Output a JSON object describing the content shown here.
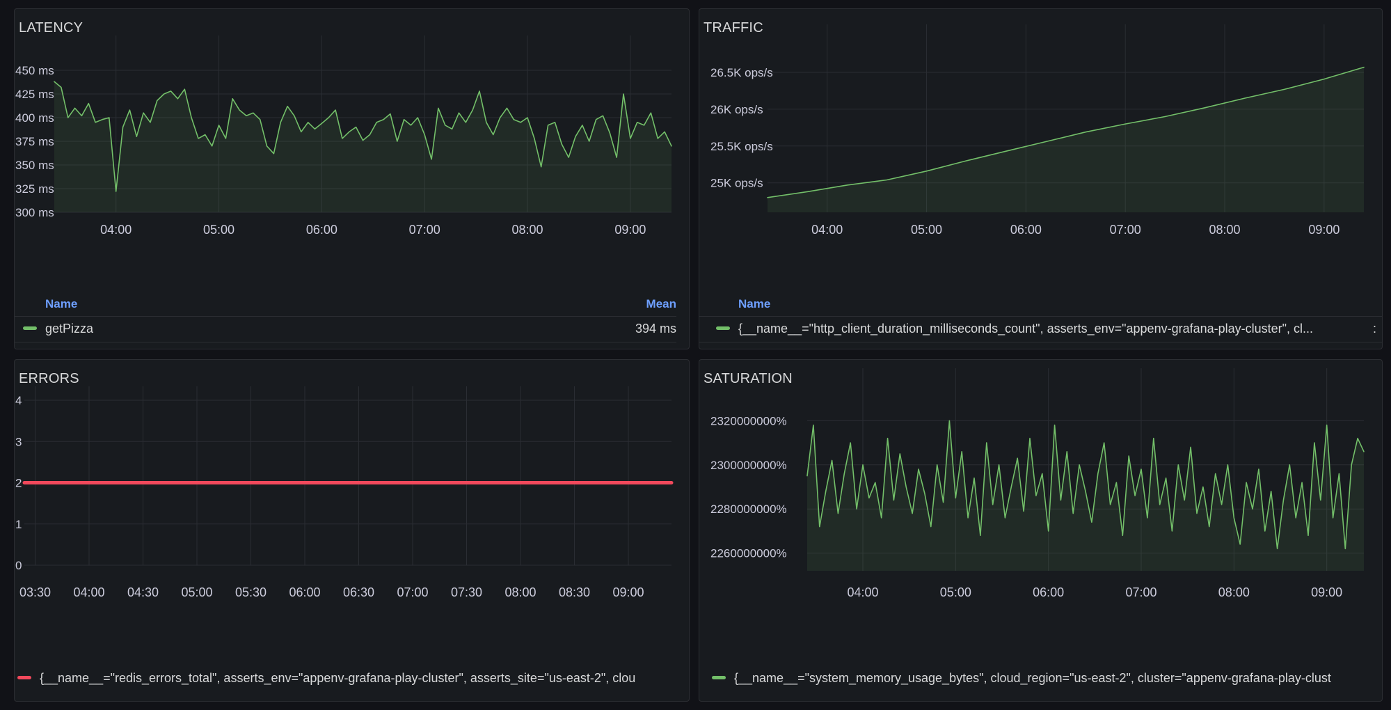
{
  "colors": {
    "green": "#73bf69",
    "red": "#f2495c"
  },
  "panels": {
    "latency": {
      "title": "LATENCY",
      "legend_name_header": "Name",
      "legend_mean_header": "Mean",
      "legend_series": "getPizza",
      "legend_mean": "394 ms"
    },
    "traffic": {
      "title": "TRAFFIC",
      "legend_name_header": "Name",
      "legend_series": "{__name__=\"http_client_duration_milliseconds_count\", asserts_env=\"appenv-grafana-play-cluster\", cl...",
      "legend_trailing": ":"
    },
    "errors": {
      "title": "ERRORS",
      "legend_series": "{__name__=\"redis_errors_total\", asserts_env=\"appenv-grafana-play-cluster\", asserts_site=\"us-east-2\", clou"
    },
    "saturation": {
      "title": "SATURATION",
      "legend_series": "{__name__=\"system_memory_usage_bytes\", cloud_region=\"us-east-2\", cluster=\"appenv-grafana-play-clust"
    }
  },
  "chart_data": [
    {
      "id": "latency",
      "type": "area",
      "title": "LATENCY",
      "unit": "ms",
      "x_ticks": [
        "04:00",
        "05:00",
        "06:00",
        "07:00",
        "08:00",
        "09:00"
      ],
      "y_ticks": [
        "450 ms",
        "425 ms",
        "400 ms",
        "375 ms",
        "350 ms",
        "325 ms",
        "300 ms"
      ],
      "ylim": [
        300,
        450
      ],
      "xlim": [
        "03:24",
        "09:24"
      ],
      "series": [
        {
          "name": "getPizza",
          "mean": "394 ms",
          "x": [
            "03:24",
            "03:28",
            "03:32",
            "03:36",
            "03:40",
            "03:44",
            "03:48",
            "03:52",
            "03:56",
            "04:00",
            "04:04",
            "04:08",
            "04:12",
            "04:16",
            "04:20",
            "04:24",
            "04:28",
            "04:32",
            "04:36",
            "04:40",
            "04:44",
            "04:48",
            "04:52",
            "04:56",
            "05:00",
            "05:04",
            "05:08",
            "05:12",
            "05:16",
            "05:20",
            "05:24",
            "05:28",
            "05:32",
            "05:36",
            "05:40",
            "05:44",
            "05:48",
            "05:52",
            "05:56",
            "06:00",
            "06:04",
            "06:08",
            "06:12",
            "06:16",
            "06:20",
            "06:24",
            "06:28",
            "06:32",
            "06:36",
            "06:40",
            "06:44",
            "06:48",
            "06:52",
            "06:56",
            "07:00",
            "07:04",
            "07:08",
            "07:12",
            "07:16",
            "07:20",
            "07:24",
            "07:28",
            "07:32",
            "07:36",
            "07:40",
            "07:44",
            "07:48",
            "07:52",
            "07:56",
            "08:00",
            "08:04",
            "08:08",
            "08:12",
            "08:16",
            "08:20",
            "08:24",
            "08:28",
            "08:32",
            "08:36",
            "08:40",
            "08:44",
            "08:48",
            "08:52",
            "08:56",
            "09:00",
            "09:04",
            "09:08",
            "09:12",
            "09:16",
            "09:20",
            "09:24"
          ],
          "values": [
            438,
            432,
            400,
            410,
            402,
            415,
            395,
            398,
            400,
            322,
            390,
            408,
            380,
            405,
            395,
            418,
            425,
            428,
            420,
            430,
            400,
            378,
            382,
            370,
            392,
            378,
            420,
            408,
            402,
            405,
            398,
            370,
            362,
            395,
            412,
            402,
            385,
            395,
            388,
            394,
            400,
            408,
            378,
            385,
            390,
            376,
            382,
            395,
            398,
            404,
            375,
            398,
            392,
            400,
            382,
            356,
            410,
            392,
            388,
            405,
            395,
            408,
            428,
            395,
            382,
            400,
            410,
            398,
            395,
            400,
            378,
            348,
            392,
            395,
            372,
            358,
            380,
            392,
            375,
            398,
            402,
            384,
            358,
            425,
            378,
            395,
            392,
            405,
            378,
            385,
            370
          ]
        }
      ]
    },
    {
      "id": "traffic",
      "type": "area",
      "title": "TRAFFIC",
      "unit": "ops/s",
      "x_ticks": [
        "04:00",
        "05:00",
        "06:00",
        "07:00",
        "08:00",
        "09:00"
      ],
      "y_ticks": [
        "26.5K ops/s",
        "26K ops/s",
        "25.5K ops/s",
        "25K ops/s"
      ],
      "ylim": [
        24600,
        26680
      ],
      "xlim": [
        "03:24",
        "09:24"
      ],
      "series": [
        {
          "name": "{__name__=\"http_client_duration_milliseconds_count\", asserts_env=\"appenv-grafana-play-cluster\", cl...",
          "x": [
            "03:24",
            "03:48",
            "04:12",
            "04:36",
            "05:00",
            "05:24",
            "05:48",
            "06:12",
            "06:36",
            "07:00",
            "07:24",
            "07:48",
            "08:12",
            "08:36",
            "09:00",
            "09:24"
          ],
          "values": [
            24800,
            24880,
            24970,
            25040,
            25160,
            25300,
            25430,
            25560,
            25690,
            25800,
            25900,
            26020,
            26150,
            26270,
            26410,
            26570
          ]
        }
      ]
    },
    {
      "id": "errors",
      "type": "line",
      "title": "ERRORS",
      "x_ticks": [
        "03:30",
        "04:00",
        "04:30",
        "05:00",
        "05:30",
        "06:00",
        "06:30",
        "07:00",
        "07:30",
        "08:00",
        "08:30",
        "09:00"
      ],
      "y_ticks": [
        "4",
        "3",
        "2",
        "1",
        "0"
      ],
      "ylim": [
        0,
        4
      ],
      "xlim": [
        "03:24",
        "09:24"
      ],
      "series": [
        {
          "name": "{__name__=\"redis_errors_total\", asserts_env=\"appenv-grafana-play-cluster\", asserts_site=\"us-east-2\", clou",
          "x": [
            "03:24",
            "09:24"
          ],
          "values": [
            2,
            2
          ]
        }
      ]
    },
    {
      "id": "saturation",
      "type": "area",
      "title": "SATURATION",
      "unit": "%",
      "x_ticks": [
        "04:00",
        "05:00",
        "06:00",
        "07:00",
        "08:00",
        "09:00"
      ],
      "y_ticks": [
        "2320000000%",
        "2300000000%",
        "2280000000%",
        "2260000000%"
      ],
      "ylim": [
        2252000000,
        2328000000
      ],
      "xlim": [
        "03:24",
        "09:24"
      ],
      "series": [
        {
          "name": "{__name__=\"system_memory_usage_bytes\", cloud_region=\"us-east-2\", cluster=\"appenv-grafana-play-clust",
          "x": [
            "03:24",
            "03:28",
            "03:32",
            "03:36",
            "03:40",
            "03:44",
            "03:48",
            "03:52",
            "03:56",
            "04:00",
            "04:04",
            "04:08",
            "04:12",
            "04:16",
            "04:20",
            "04:24",
            "04:28",
            "04:32",
            "04:36",
            "04:40",
            "04:44",
            "04:48",
            "04:52",
            "04:56",
            "05:00",
            "05:04",
            "05:08",
            "05:12",
            "05:16",
            "05:20",
            "05:24",
            "05:28",
            "05:32",
            "05:36",
            "05:40",
            "05:44",
            "05:48",
            "05:52",
            "05:56",
            "06:00",
            "06:04",
            "06:08",
            "06:12",
            "06:16",
            "06:20",
            "06:24",
            "06:28",
            "06:32",
            "06:36",
            "06:40",
            "06:44",
            "06:48",
            "06:52",
            "06:56",
            "07:00",
            "07:04",
            "07:08",
            "07:12",
            "07:16",
            "07:20",
            "07:24",
            "07:28",
            "07:32",
            "07:36",
            "07:40",
            "07:44",
            "07:48",
            "07:52",
            "07:56",
            "08:00",
            "08:04",
            "08:08",
            "08:12",
            "08:16",
            "08:20",
            "08:24",
            "08:28",
            "08:32",
            "08:36",
            "08:40",
            "08:44",
            "08:48",
            "08:52",
            "08:56",
            "09:00",
            "09:04",
            "09:08",
            "09:12",
            "09:16",
            "09:20",
            "09:24"
          ],
          "values": [
            2295,
            2318,
            2272,
            2288,
            2302,
            2278,
            2296,
            2310,
            2280,
            2300,
            2285,
            2292,
            2276,
            2312,
            2284,
            2305,
            2290,
            2278,
            2298,
            2287,
            2272,
            2300,
            2283,
            2320,
            2285,
            2306,
            2276,
            2294,
            2268,
            2310,
            2282,
            2300,
            2276,
            2290,
            2303,
            2279,
            2312,
            2286,
            2296,
            2270,
            2318,
            2284,
            2306,
            2278,
            2300,
            2288,
            2274,
            2296,
            2310,
            2282,
            2292,
            2268,
            2304,
            2286,
            2298,
            2276,
            2312,
            2282,
            2294,
            2270,
            2300,
            2284,
            2308,
            2278,
            2290,
            2272,
            2296,
            2282,
            2300,
            2276,
            2264,
            2292,
            2280,
            2298,
            2270,
            2288,
            2262,
            2284,
            2300,
            2276,
            2292,
            2268,
            2310,
            2284,
            2318,
            2276,
            2296,
            2262,
            2300,
            2312,
            2306
          ]
        }
      ]
    }
  ]
}
